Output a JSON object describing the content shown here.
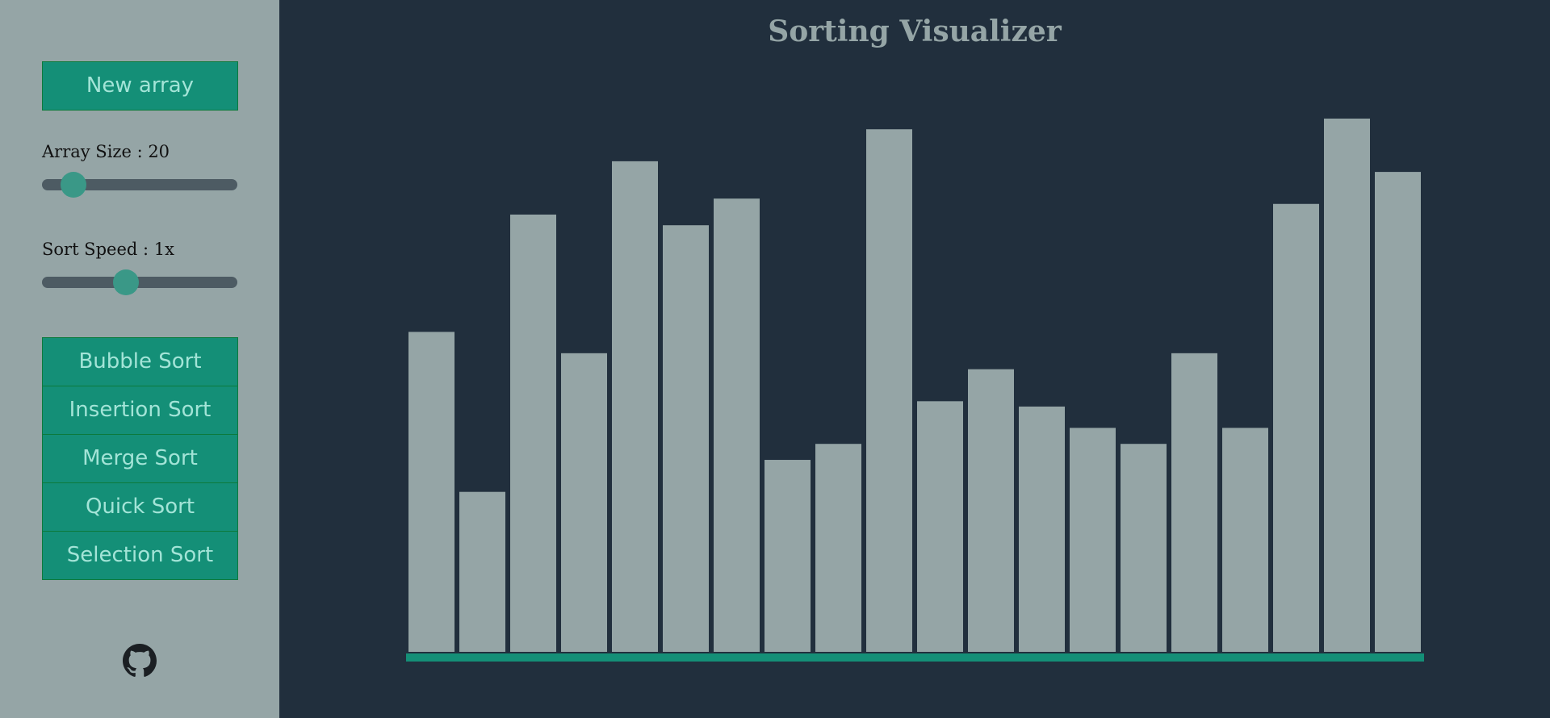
{
  "app": {
    "title": "Sorting Visualizer"
  },
  "sidebar": {
    "new_array_label": "New array",
    "array_size_label": "Array Size : 20",
    "array_size_value": 20,
    "sort_speed_label": "Sort Speed : 1x",
    "sort_speed_fraction": 0.43,
    "array_size_fraction": 0.16,
    "sort_buttons": [
      "Bubble Sort",
      "Insertion Sort",
      "Merge Sort",
      "Quick Sort",
      "Selection Sort"
    ],
    "github_icon": "github-icon"
  },
  "colors": {
    "sidebar_bg": "#95a5a6",
    "main_bg": "#212f3d",
    "button_bg": "#148f77",
    "button_text": "#a3e4d7",
    "bar_color": "#95a5a6",
    "baseline_color": "#148f77",
    "slider_thumb": "#3a9887"
  },
  "chart_data": {
    "type": "bar",
    "values": [
      60,
      30,
      82,
      56,
      92,
      80,
      85,
      36,
      39,
      98,
      47,
      53,
      46,
      42,
      39,
      56,
      42,
      84,
      100,
      90
    ],
    "ylim": [
      0,
      100
    ]
  }
}
